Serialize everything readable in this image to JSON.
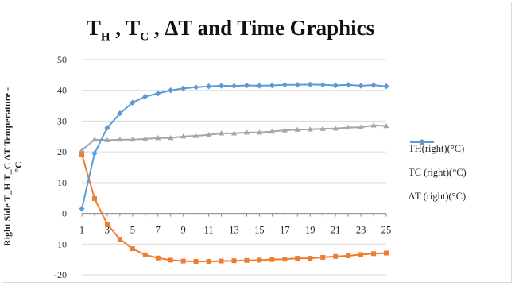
{
  "chart_data": {
    "type": "line",
    "title": "T_H , T_C , ΔT and Time Graphics",
    "title_parts": [
      "T",
      "H",
      " , T",
      "C",
      " , ΔT and Time Graphics"
    ],
    "ylabel_lines": [
      "Right Side T_H  T_C ΔT Temperature -",
      "°C"
    ],
    "x": [
      1,
      2,
      3,
      4,
      5,
      6,
      7,
      8,
      9,
      10,
      11,
      12,
      13,
      14,
      15,
      16,
      17,
      18,
      19,
      20,
      21,
      22,
      23,
      24,
      25
    ],
    "x_tick_labels": [
      "1",
      "3",
      "5",
      "7",
      "9",
      "11",
      "13",
      "15",
      "17",
      "19",
      "21",
      "23",
      "25"
    ],
    "y_tick_labels": [
      "50",
      "40",
      "30",
      "20",
      "10",
      "0",
      "-10",
      "-20"
    ],
    "ylim": [
      -20,
      50
    ],
    "grid": true,
    "legend_position": "right",
    "series": [
      {
        "name": "TH(right)(°C)",
        "color": "#a6a6a6",
        "marker": "triangle",
        "values": [
          20.5,
          24,
          23.8,
          24,
          24,
          24.2,
          24.5,
          24.5,
          25,
          25.2,
          25.5,
          26,
          26,
          26.3,
          26.3,
          26.6,
          27,
          27.2,
          27.3,
          27.5,
          27.6,
          27.9,
          28,
          28.6,
          28.4
        ]
      },
      {
        "name": "TC (right)(°C)",
        "color": "#ed7d31",
        "marker": "square",
        "values": [
          19.2,
          4.8,
          -3.5,
          -8.4,
          -11.5,
          -13.5,
          -14.5,
          -15.2,
          -15.5,
          -15.6,
          -15.6,
          -15.5,
          -15.4,
          -15.3,
          -15.2,
          -15,
          -14.9,
          -14.6,
          -14.6,
          -14.3,
          -14,
          -13.8,
          -13.4,
          -13.1,
          -12.9
        ]
      },
      {
        "name": "ΔT (right)(°C)",
        "color": "#5b9bd5",
        "marker": "diamond",
        "values": [
          1.5,
          19.5,
          27.8,
          32.5,
          36,
          38,
          39,
          40,
          40.6,
          41,
          41.3,
          41.5,
          41.4,
          41.6,
          41.5,
          41.6,
          41.8,
          41.8,
          41.9,
          41.8,
          41.6,
          41.8,
          41.5,
          41.7,
          41.3
        ]
      }
    ]
  }
}
